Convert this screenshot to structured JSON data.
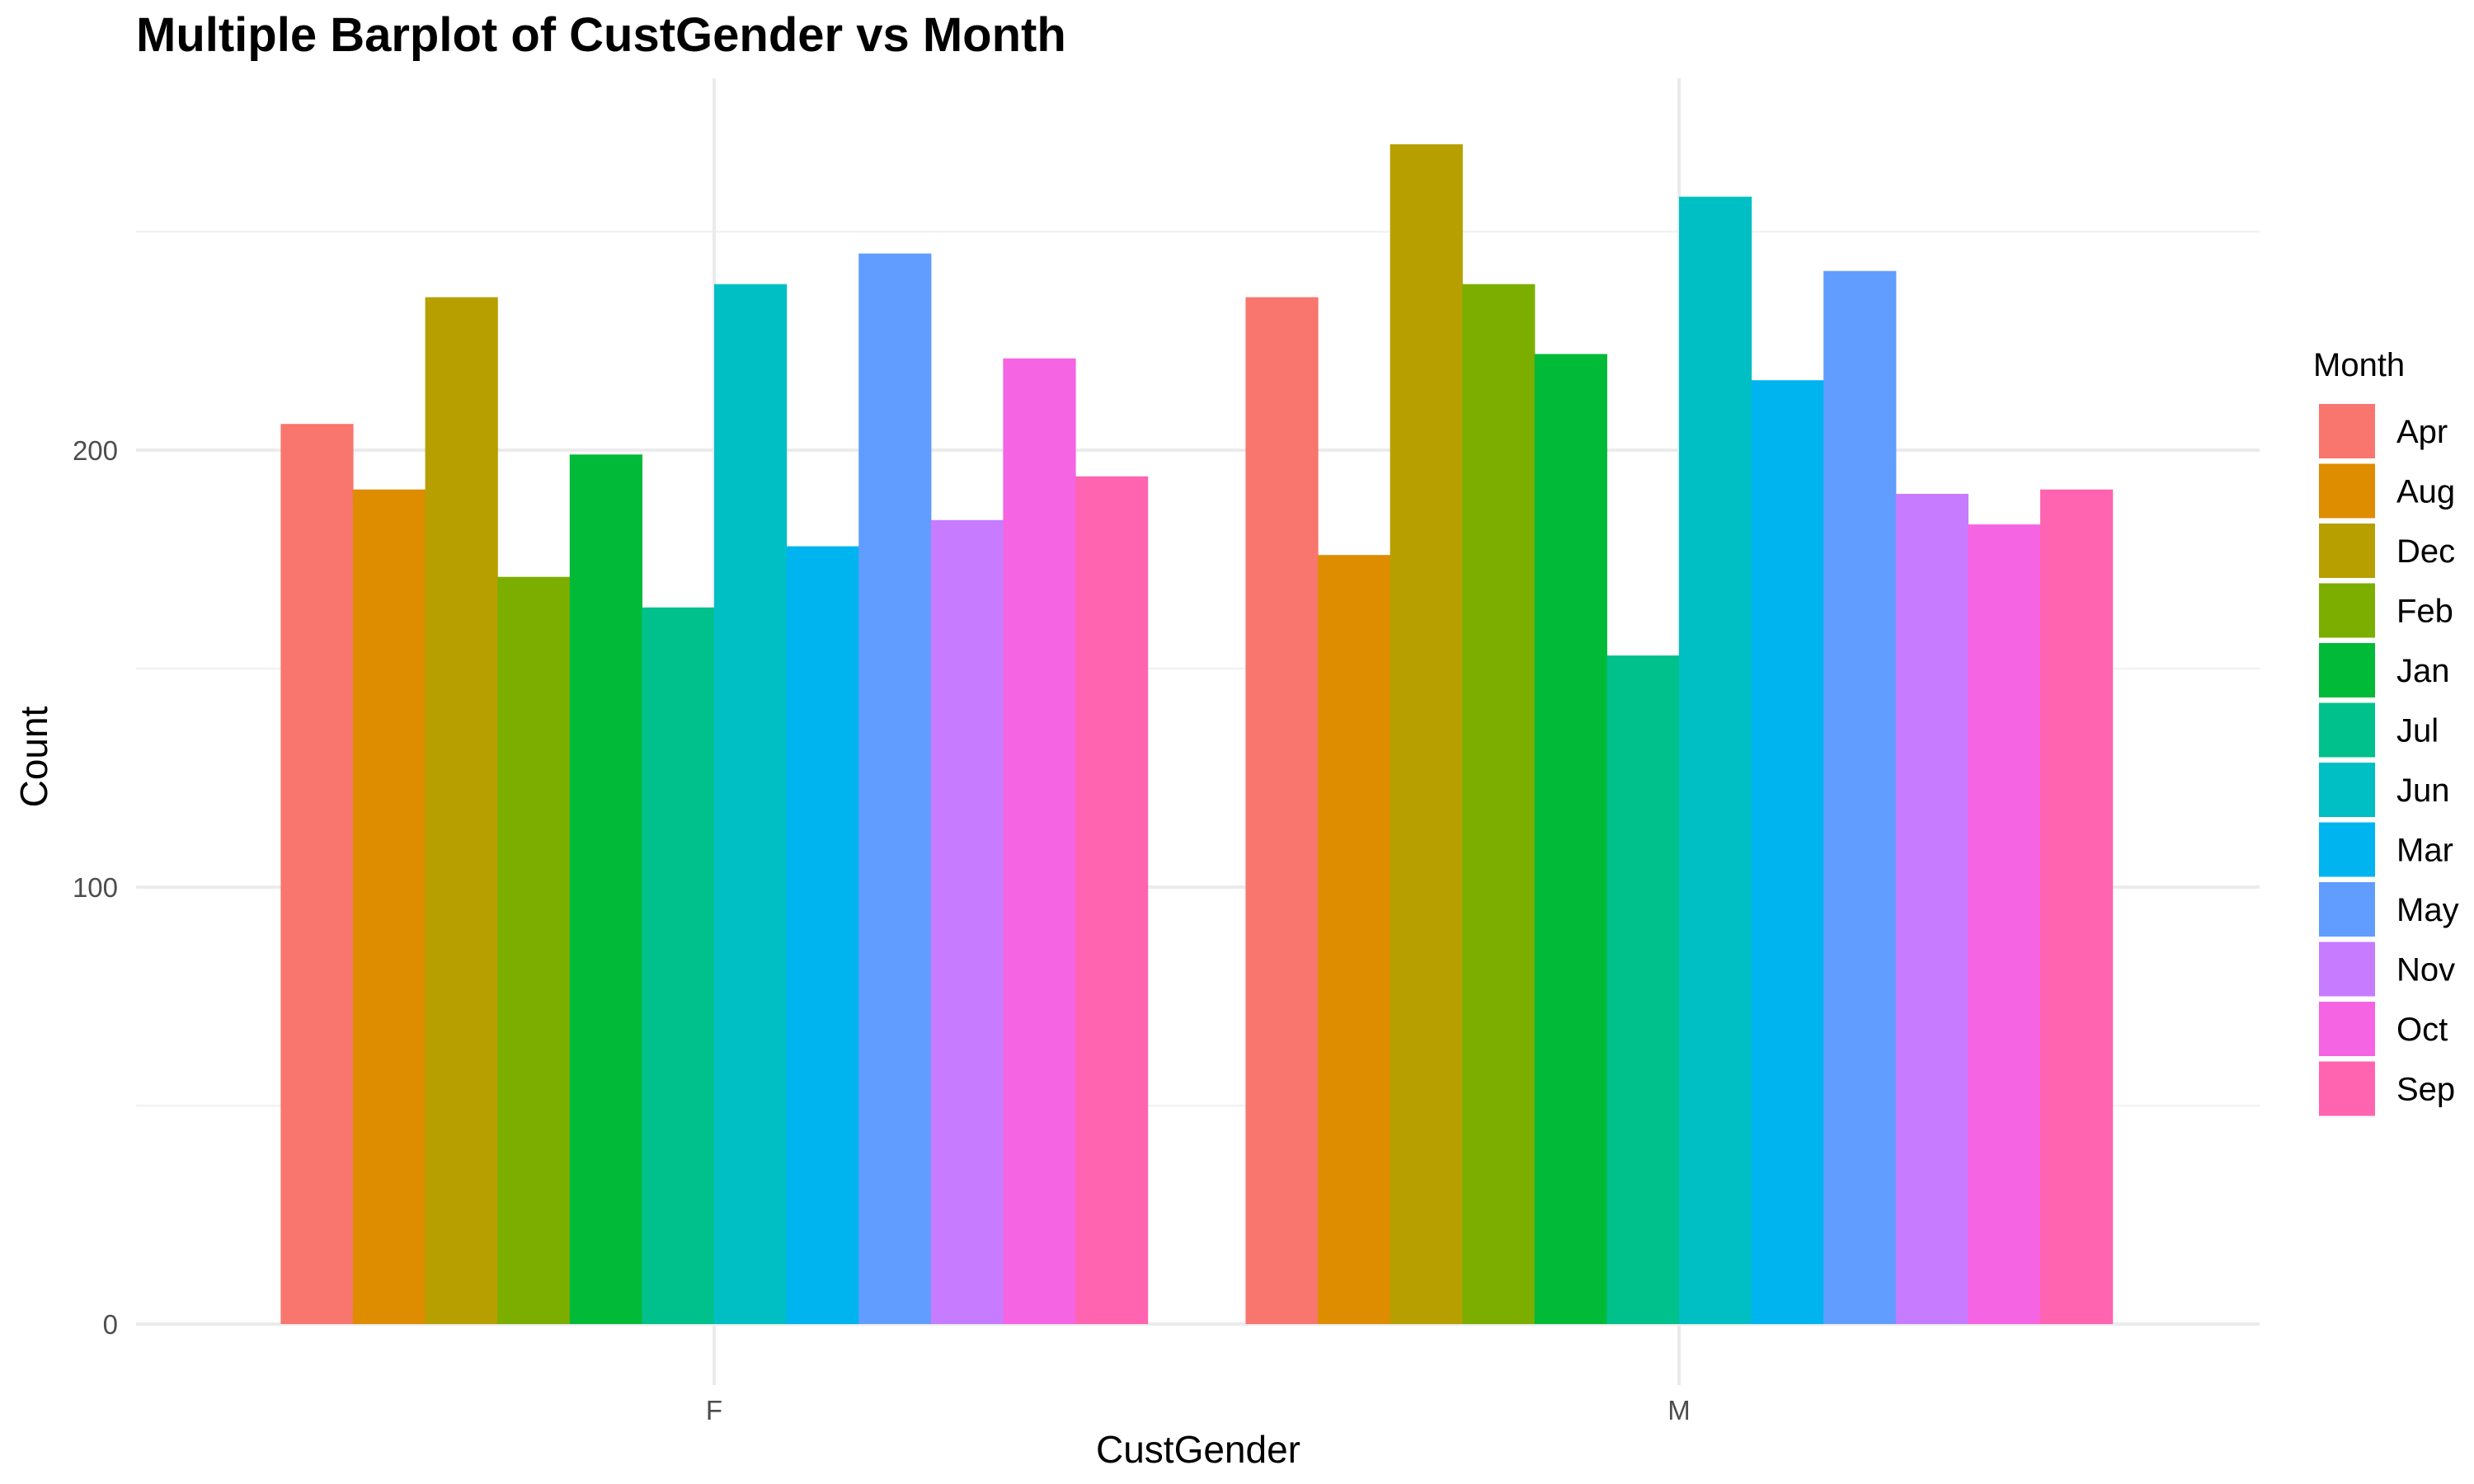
{
  "chart_data": {
    "type": "bar",
    "title": "Multiple Barplot of CustGender vs Month",
    "xlabel": "CustGender",
    "ylabel": "Count",
    "categories": [
      "F",
      "M"
    ],
    "ylim": [
      0,
      270
    ],
    "yticks": [
      0,
      100,
      200
    ],
    "grid": true,
    "legend": {
      "title": "Month",
      "position": "right"
    },
    "series": [
      {
        "name": "Apr",
        "color": "#F8766D",
        "values": [
          206,
          235
        ]
      },
      {
        "name": "Aug",
        "color": "#DE8C00",
        "values": [
          191,
          176
        ]
      },
      {
        "name": "Dec",
        "color": "#B79F00",
        "values": [
          235,
          270
        ]
      },
      {
        "name": "Feb",
        "color": "#7CAE00",
        "values": [
          171,
          238
        ]
      },
      {
        "name": "Jan",
        "color": "#00BA38",
        "values": [
          199,
          222
        ]
      },
      {
        "name": "Jul",
        "color": "#00C08B",
        "values": [
          164,
          153
        ]
      },
      {
        "name": "Jun",
        "color": "#00BFC4",
        "values": [
          238,
          258
        ]
      },
      {
        "name": "Mar",
        "color": "#00B4F0",
        "values": [
          178,
          216
        ]
      },
      {
        "name": "May",
        "color": "#619CFF",
        "values": [
          245,
          241
        ]
      },
      {
        "name": "Nov",
        "color": "#C77CFF",
        "values": [
          184,
          190
        ]
      },
      {
        "name": "Oct",
        "color": "#F564E3",
        "values": [
          221,
          183
        ]
      },
      {
        "name": "Sep",
        "color": "#FF64B0",
        "values": [
          194,
          191
        ]
      }
    ]
  }
}
